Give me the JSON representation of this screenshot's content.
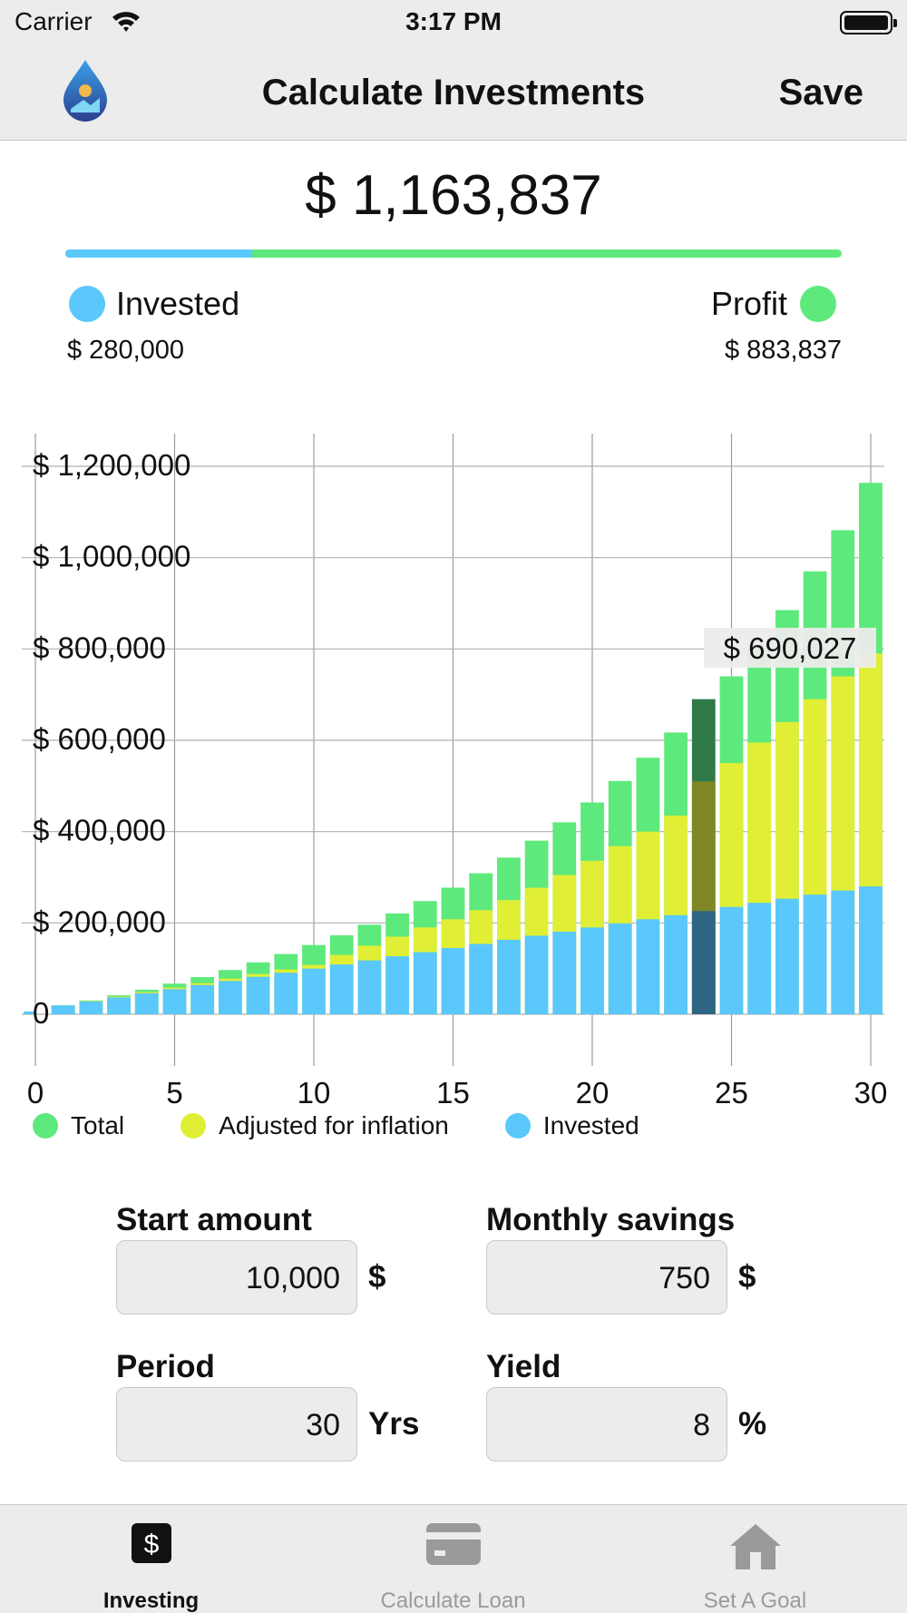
{
  "status_bar": {
    "carrier": "Carrier",
    "time": "3:17 PM"
  },
  "nav": {
    "title": "Calculate Investments",
    "save_label": "Save"
  },
  "summary": {
    "total": "$ 1,163,837",
    "invested_label": "Invested",
    "invested_value": "$ 280,000",
    "profit_label": "Profit",
    "profit_value": "$ 883,837",
    "invested_fraction": 0.2406
  },
  "colors": {
    "invested": "#5ac8fa",
    "profit": "#5ee97c",
    "inflation": "#e0ef35",
    "highlight_total": "#2f7a48",
    "highlight_inflation": "#7f8726",
    "highlight_invested": "#2f6484"
  },
  "chart_data": {
    "type": "bar",
    "stacked": true,
    "x": [
      1,
      2,
      3,
      4,
      5,
      6,
      7,
      8,
      9,
      10,
      11,
      12,
      13,
      14,
      15,
      16,
      17,
      18,
      19,
      20,
      21,
      22,
      23,
      24,
      25,
      26,
      27,
      28,
      29,
      30
    ],
    "series": [
      {
        "name": "Total",
        "values": [
          19700,
          30200,
          41500,
          53800,
          67100,
          81400,
          96900,
          113700,
          131900,
          151600,
          172900,
          196000,
          220900,
          247900,
          277200,
          308800,
          343100,
          380200,
          420300,
          463800,
          510900,
          561800,
          617000,
          690027,
          740000,
          810000,
          885000,
          970000,
          1060000,
          1163837
        ]
      },
      {
        "name": "Adjusted for inflation",
        "values": [
          19100,
          28900,
          38700,
          48500,
          58300,
          68200,
          78000,
          88000,
          98000,
          108000,
          130000,
          150000,
          170000,
          190000,
          208000,
          228000,
          250000,
          277000,
          305000,
          336000,
          368000,
          400000,
          435000,
          510000,
          550000,
          595000,
          640000,
          690000,
          740000,
          790000
        ]
      },
      {
        "name": "Invested",
        "values": [
          19000,
          28000,
          37000,
          46000,
          55000,
          64000,
          73000,
          82000,
          91000,
          100000,
          109000,
          118000,
          127000,
          136000,
          145000,
          154000,
          163000,
          172000,
          181000,
          190000,
          199000,
          208000,
          217000,
          226000,
          235000,
          244000,
          253000,
          262000,
          271000,
          280000
        ]
      }
    ],
    "xlim": [
      0,
      30
    ],
    "ylim": [
      0,
      1200000
    ],
    "x_ticks": [
      "0",
      "5",
      "10",
      "15",
      "20",
      "25",
      "30"
    ],
    "y_ticks": [
      "0",
      "$ 200,000",
      "$ 400,000",
      "$ 600,000",
      "$ 800,000",
      "$ 1,000,000",
      "$ 1,200,000"
    ],
    "highlight_index": 23,
    "highlight_label": "$ 690,027",
    "grid": true,
    "legend_position": "bottom"
  },
  "legend": [
    {
      "label": "Total",
      "color": "#5ee97c"
    },
    {
      "label": "Adjusted for inflation",
      "color": "#e0ef35"
    },
    {
      "label": "Invested",
      "color": "#5ac8fa"
    }
  ],
  "inputs": {
    "start_amount": {
      "label": "Start amount",
      "value": "10,000",
      "unit": "$"
    },
    "monthly_savings": {
      "label": "Monthly savings",
      "value": "750",
      "unit": "$"
    },
    "period": {
      "label": "Period",
      "value": "30",
      "unit": "Yrs"
    },
    "yield": {
      "label": "Yield",
      "value": "8",
      "unit": "%"
    }
  },
  "tabs": [
    {
      "label": "Investing",
      "icon": "dollar-icon",
      "active": true
    },
    {
      "label": "Calculate Loan",
      "icon": "card-icon",
      "active": false
    },
    {
      "label": "Set A Goal",
      "icon": "house-icon",
      "active": false
    }
  ]
}
